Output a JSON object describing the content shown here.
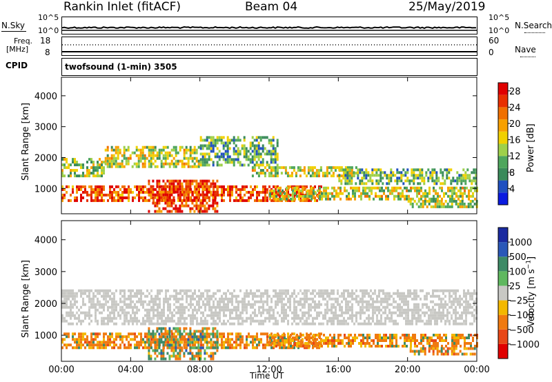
{
  "header": {
    "station": "Rankin Inlet (fitACF)",
    "beam": "Beam 04",
    "date": "25/May/2019"
  },
  "top_panels": {
    "nsky_label": "N.Sky",
    "nsky_ticks": [
      "10^5",
      "10^0"
    ],
    "nsearch_label": "N.Search",
    "freq_label_line1": "Freq.",
    "freq_label_line2": "[MHz]",
    "freq_ticks": [
      "18",
      "8"
    ],
    "nave_label": "Nave",
    "nave_ticks": [
      "60",
      "0"
    ],
    "cpid_label": "CPID",
    "cpid_value": "twofsound (1-min) 3505"
  },
  "chart_data": [
    {
      "type": "heatmap",
      "panel": "power",
      "xlabel": "",
      "ylabel": "Slant Range [km]",
      "x_ticks": [
        "00:00",
        "04:00",
        "08:00",
        "12:00",
        "16:00",
        "20:00",
        "00:00"
      ],
      "x_range_hours": [
        0,
        24
      ],
      "y_ticks": [
        1000,
        2000,
        3000,
        4000
      ],
      "ylim": [
        180,
        4600
      ],
      "colorbar": {
        "label": "Power [dB]",
        "ticks": [
          "4",
          "8",
          "12",
          "16",
          "20",
          "24",
          "28"
        ],
        "range": [
          0,
          30
        ],
        "colors": [
          "#0a1be0",
          "#2050c0",
          "#3a8a5a",
          "#4ea65c",
          "#9ed04a",
          "#f0d000",
          "#f7a000",
          "#f07000",
          "#e83000",
          "#e00000"
        ]
      },
      "bands": [
        {
          "from_h": 0,
          "to_h": 2.5,
          "range_km": [
            1450,
            2050
          ],
          "level": 0.45
        },
        {
          "from_h": 2.5,
          "to_h": 8,
          "range_km": [
            1750,
            2400
          ],
          "level": 0.5
        },
        {
          "from_h": 8,
          "to_h": 12.5,
          "range_km": [
            1800,
            2700
          ],
          "level": 0.35
        },
        {
          "from_h": 11,
          "to_h": 17,
          "range_km": [
            1450,
            1800
          ],
          "level": 0.5
        },
        {
          "from_h": 16,
          "to_h": 24,
          "range_km": [
            1200,
            1700
          ],
          "level": 0.35
        },
        {
          "from_h": 0,
          "to_h": 15,
          "range_km": [
            650,
            1150
          ],
          "level": 0.8
        },
        {
          "from_h": 5,
          "to_h": 9,
          "range_km": [
            300,
            1300
          ],
          "level": 0.85
        },
        {
          "from_h": 12,
          "to_h": 24,
          "range_km": [
            700,
            1100
          ],
          "level": 0.5
        },
        {
          "from_h": 20,
          "to_h": 24,
          "range_km": [
            450,
            700
          ],
          "level": 0.45
        }
      ]
    },
    {
      "type": "heatmap",
      "panel": "velocity",
      "xlabel": "Time UT",
      "ylabel": "Slant Range [km]",
      "x_ticks": [
        "00:00",
        "04:00",
        "08:00",
        "12:00",
        "16:00",
        "20:00",
        "00:00"
      ],
      "x_range_hours": [
        0,
        24
      ],
      "y_ticks": [
        1000,
        2000,
        3000,
        4000
      ],
      "ylim": [
        180,
        4600
      ],
      "colorbar": {
        "label": "Velocity [m s^-1]",
        "ticks": [
          "1000",
          "500",
          "100",
          "25",
          "−25",
          "−100",
          "−500",
          "−1000"
        ],
        "colors": [
          "#1a2aa0",
          "#2a58b8",
          "#3d8a66",
          "#5fb85f",
          "#c8c8c4",
          "#f3b800",
          "#f07a10",
          "#e84818",
          "#e00000"
        ]
      },
      "bands": [
        {
          "from_h": 0,
          "to_h": 24,
          "range_km": [
            1400,
            2450
          ],
          "category": "ground",
          "level": 0.5
        },
        {
          "from_h": 0,
          "to_h": 15,
          "range_km": [
            650,
            1150
          ],
          "category": "negative",
          "level": 0.8
        },
        {
          "from_h": 5,
          "to_h": 9,
          "range_km": [
            300,
            1300
          ],
          "category": "mixed",
          "level": 0.6
        },
        {
          "from_h": 12,
          "to_h": 24,
          "range_km": [
            700,
            1100
          ],
          "category": "negative",
          "level": 0.7
        },
        {
          "from_h": 20,
          "to_h": 24,
          "range_km": [
            450,
            700
          ],
          "category": "negative",
          "level": 0.6
        }
      ]
    }
  ],
  "colors": {
    "line": "#000000",
    "power_colors": "chart_data[0].colorbar.colors",
    "velocity_colors": "chart_data[1].colorbar.colors"
  }
}
